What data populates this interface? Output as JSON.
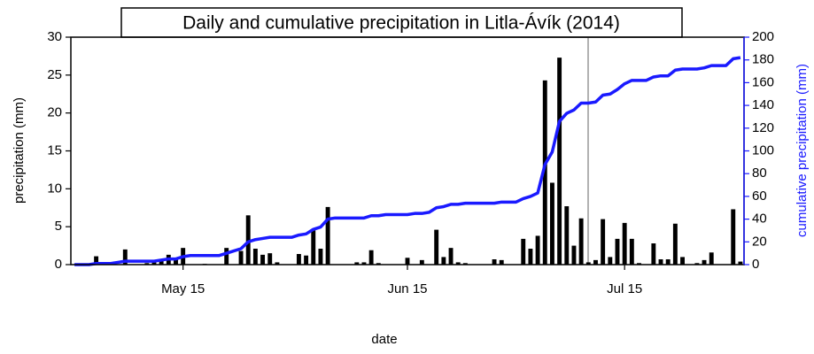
{
  "chart_data": {
    "type": "bar_line",
    "title": "Daily and cumulative precipitation in Litla-Ávík (2014)",
    "x_label": "date",
    "y_label": "precipitation (mm)",
    "y2_label": "cumulative precipitation (mm)",
    "categories": [
      null,
      null,
      null,
      null,
      null,
      null,
      null,
      null,
      null,
      null,
      null,
      null,
      null,
      null,
      null,
      "May 15",
      null,
      null,
      null,
      null,
      null,
      null,
      null,
      null,
      null,
      null,
      null,
      null,
      null,
      null,
      null,
      null,
      null,
      null,
      null,
      null,
      null,
      null,
      null,
      null,
      null,
      null,
      null,
      null,
      null,
      null,
      "Jun 15",
      null,
      null,
      null,
      null,
      null,
      null,
      null,
      null,
      null,
      null,
      null,
      null,
      null,
      null,
      null,
      null,
      null,
      null,
      null,
      null,
      null,
      null,
      null,
      null,
      null,
      null,
      null,
      null,
      null,
      "Jul 15",
      null,
      null,
      null,
      null,
      null,
      null,
      null,
      null,
      null,
      null,
      null,
      null,
      null,
      null,
      null,
      null
    ],
    "series": [
      {
        "type": "bar",
        "color": "#000000",
        "values": [
          0,
          0,
          0,
          1.1,
          0,
          0,
          0,
          2.0,
          0,
          0,
          0.2,
          0.3,
          0.5,
          1.3,
          0.8,
          2.2,
          0,
          0,
          0.1,
          0,
          0,
          2.2,
          0,
          1.8,
          6.5,
          2.1,
          1.3,
          1.5,
          0.3,
          0,
          0,
          1.4,
          1.2,
          4.5,
          2.1,
          7.6,
          0,
          0,
          0,
          0.3,
          0.3,
          1.9,
          0.2,
          0,
          0,
          0,
          0.9,
          0,
          0.6,
          0,
          4.6,
          1.0,
          2.2,
          0.3,
          0.2,
          0,
          0,
          0,
          0.7,
          0.6,
          0,
          0,
          3.4,
          2.1,
          3.8,
          24.3,
          10.8,
          27.3,
          7.7,
          2.5,
          6.1,
          0.3,
          0.6,
          6.0,
          1.0,
          3.4,
          5.5,
          3.4,
          0.2,
          0,
          2.8,
          0.7,
          0.7,
          5.4,
          1.0,
          0,
          0.2,
          0.6,
          1.6,
          0,
          0,
          7.3,
          0.4
        ]
      },
      {
        "type": "line",
        "axis": "y2",
        "color": "#1a1aff",
        "values": [
          0,
          0,
          0,
          1,
          1,
          1,
          2,
          3,
          3,
          3,
          3,
          3,
          4,
          5,
          5,
          7,
          8,
          8,
          8,
          8,
          8,
          10,
          12,
          14,
          20,
          22,
          23,
          24,
          24,
          24,
          24,
          26,
          27,
          31,
          33,
          40,
          41,
          41,
          41,
          41,
          41,
          43,
          43,
          44,
          44,
          44,
          44,
          45,
          45,
          46,
          50,
          51,
          53,
          53,
          54,
          54,
          54,
          54,
          54,
          55,
          55,
          55,
          58,
          60,
          63,
          88,
          99,
          126,
          133,
          136,
          142,
          142,
          143,
          149,
          150,
          154,
          159,
          162,
          162,
          162,
          165,
          166,
          166,
          171,
          172,
          172,
          172,
          173,
          175,
          175,
          175,
          181,
          182
        ]
      }
    ],
    "ylim": [
      0,
      30
    ],
    "yticks": [
      0,
      5,
      10,
      15,
      20,
      25,
      30
    ],
    "y2lim": [
      0,
      200
    ],
    "y2ticks": [
      0,
      20,
      40,
      60,
      80,
      100,
      120,
      140,
      160,
      180,
      200
    ],
    "y2_color": "#1a1aff"
  }
}
